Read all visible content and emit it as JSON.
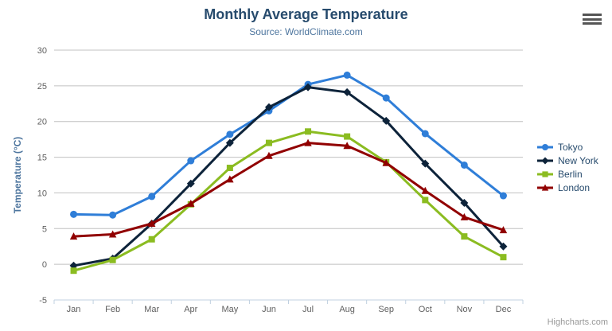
{
  "chart": {
    "export_menu_tooltip": "chart context menu"
  },
  "chart_data": {
    "type": "line",
    "title": "Monthly Average Temperature",
    "subtitle": "Source: WorldClimate.com",
    "categories": [
      "Jan",
      "Feb",
      "Mar",
      "Apr",
      "May",
      "Jun",
      "Jul",
      "Aug",
      "Sep",
      "Oct",
      "Nov",
      "Dec"
    ],
    "xlabel": "",
    "ylabel": "Temperature (°C)",
    "ylim": [
      -5,
      30
    ],
    "ytick_step": 5,
    "grid": true,
    "legend_position": "right",
    "credits": "Highcharts.com",
    "colors": {
      "grid": "#c0c0c0",
      "axis_line": "#c0d0e0",
      "tick_label": "#606060",
      "title": "#274b6d",
      "subtitle": "#4d759e",
      "axis_title": "#4d759e",
      "legend_text": "#274b6d",
      "credits_text": "#999999"
    },
    "series": [
      {
        "name": "Tokyo",
        "color": "#2f7ed8",
        "marker": "circle",
        "values": [
          7.0,
          6.9,
          9.5,
          14.5,
          18.2,
          21.5,
          25.2,
          26.5,
          23.3,
          18.3,
          13.9,
          9.6
        ]
      },
      {
        "name": "New York",
        "color": "#0d233a",
        "marker": "diamond",
        "values": [
          -0.2,
          0.8,
          5.7,
          11.3,
          17.0,
          22.0,
          24.8,
          24.1,
          20.1,
          14.1,
          8.6,
          2.5
        ]
      },
      {
        "name": "Berlin",
        "color": "#8bbc21",
        "marker": "square",
        "values": [
          -0.9,
          0.6,
          3.5,
          8.4,
          13.5,
          17.0,
          18.6,
          17.9,
          14.3,
          9.0,
          3.9,
          1.0
        ]
      },
      {
        "name": "London",
        "color": "#910000",
        "marker": "triangle",
        "values": [
          3.9,
          4.2,
          5.7,
          8.5,
          11.9,
          15.2,
          17.0,
          16.6,
          14.2,
          10.3,
          6.6,
          4.8
        ]
      }
    ]
  }
}
